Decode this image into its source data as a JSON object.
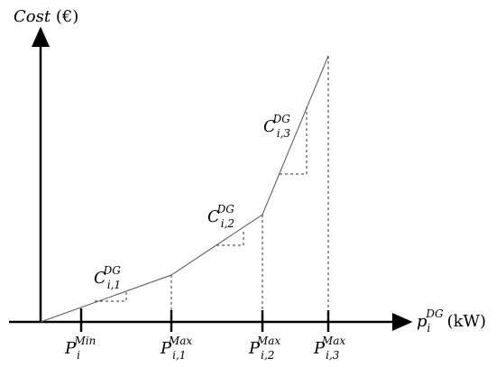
{
  "y_axis_label": {
    "base": "Cost",
    "unit": "(€)"
  },
  "x_axis_label": {
    "base": "p",
    "sub": "i",
    "sup": "DG",
    "unit": "(kW)"
  },
  "x_ticks": [
    {
      "base": "P",
      "sub": "i",
      "sup": "Min"
    },
    {
      "base": "P",
      "sub": "i,1",
      "sup": "Max"
    },
    {
      "base": "P",
      "sub": "i,2",
      "sup": "Max"
    },
    {
      "base": "P",
      "sub": "i,3",
      "sup": "Max"
    }
  ],
  "slopes": [
    {
      "base": "C",
      "sub": "i,1",
      "sup": "DG"
    },
    {
      "base": "C",
      "sub": "i,2",
      "sup": "DG"
    },
    {
      "base": "C",
      "sub": "i,3",
      "sup": "DG"
    }
  ]
}
